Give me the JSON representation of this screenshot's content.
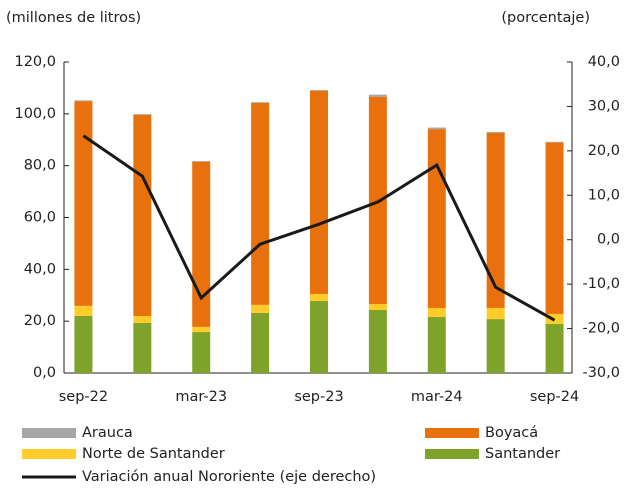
{
  "chart_data": {
    "type": "bar",
    "stacked": true,
    "y_label": "(millones de litros)",
    "y2_label": "(porcentaje)",
    "categories": [
      "sep-22",
      null,
      "mar-23",
      null,
      "sep-23",
      null,
      "mar-24",
      null,
      "sep-24"
    ],
    "series": [
      {
        "name": "Arauca",
        "color": "#a6a6a6",
        "values": [
          0.3,
          0.3,
          0.3,
          0.3,
          0.3,
          0.8,
          0.6,
          0.3,
          0.2
        ]
      },
      {
        "name": "Boyacá",
        "color": "#e8700d",
        "values": [
          79,
          77.6,
          63.7,
          77.9,
          78.4,
          80,
          69,
          67.6,
          66.2
        ]
      },
      {
        "name": "Norte de Santander",
        "color": "#ffcc29",
        "values": [
          3.9,
          2.7,
          2,
          3.1,
          2.7,
          2.3,
          3.5,
          4.3,
          3.9
        ]
      },
      {
        "name": "Santander",
        "color": "#7fa32a",
        "values": [
          22,
          19.3,
          15.8,
          23.2,
          27.8,
          24.3,
          21.6,
          20.8,
          18.9
        ]
      },
      {
        "name": "Variación anual Nororiente (eje derecho)",
        "type": "line",
        "axis": "y2",
        "color": "#1a1a1a",
        "values": [
          23.4,
          14.3,
          -13.1,
          -1,
          3.5,
          8.5,
          16.8,
          -10.7,
          -18.1
        ]
      }
    ],
    "ylim": [
      0,
      120
    ],
    "yticks": [
      {
        "value": 0,
        "label": "0,0"
      },
      {
        "value": 20,
        "label": "20,0"
      },
      {
        "value": 40,
        "label": "40,0"
      },
      {
        "value": 60,
        "label": "60,0"
      },
      {
        "value": 80,
        "label": "80,0"
      },
      {
        "value": 100,
        "label": "100,0"
      },
      {
        "value": 120,
        "label": "120,0"
      }
    ],
    "y2lim": [
      -30,
      40
    ],
    "y2ticks": [
      {
        "value": -30,
        "label": "-30,0"
      },
      {
        "value": -20,
        "label": "-20,0"
      },
      {
        "value": -10,
        "label": "-10,0"
      },
      {
        "value": 0,
        "label": "0,0"
      },
      {
        "value": 10,
        "label": "10,0"
      },
      {
        "value": 20,
        "label": "20,0"
      },
      {
        "value": 30,
        "label": "30,0"
      },
      {
        "value": 40,
        "label": "40,0"
      }
    ],
    "grid": false
  }
}
